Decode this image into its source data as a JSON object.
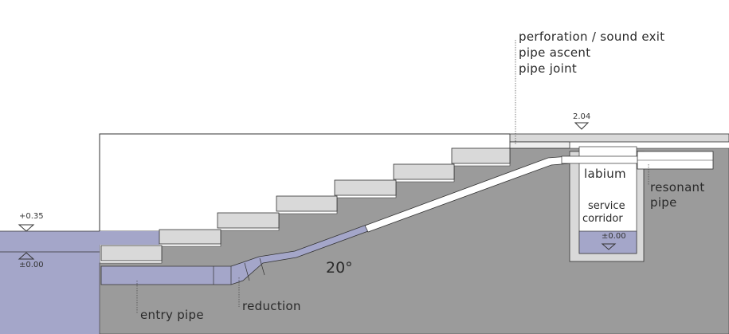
{
  "labels": {
    "perforation": "perforation / sound exit",
    "pipe_ascent": "pipe ascent",
    "pipe_joint": "pipe joint",
    "level_top": "2.04",
    "labium": "labium",
    "service": "service",
    "corridor": "corridor",
    "level_corridor": "±0.00",
    "resonant": "resonant",
    "resonant_pipe": "pipe",
    "water_high": "+0.35",
    "water_zero": "±0.00",
    "angle": "20°",
    "entry_pipe": "entry pipe",
    "reduction": "reduction"
  },
  "colors": {
    "ground": "#9b9b9b",
    "water": "#a4a6c9",
    "steps": "#d9d9d9",
    "outline": "#333333"
  }
}
